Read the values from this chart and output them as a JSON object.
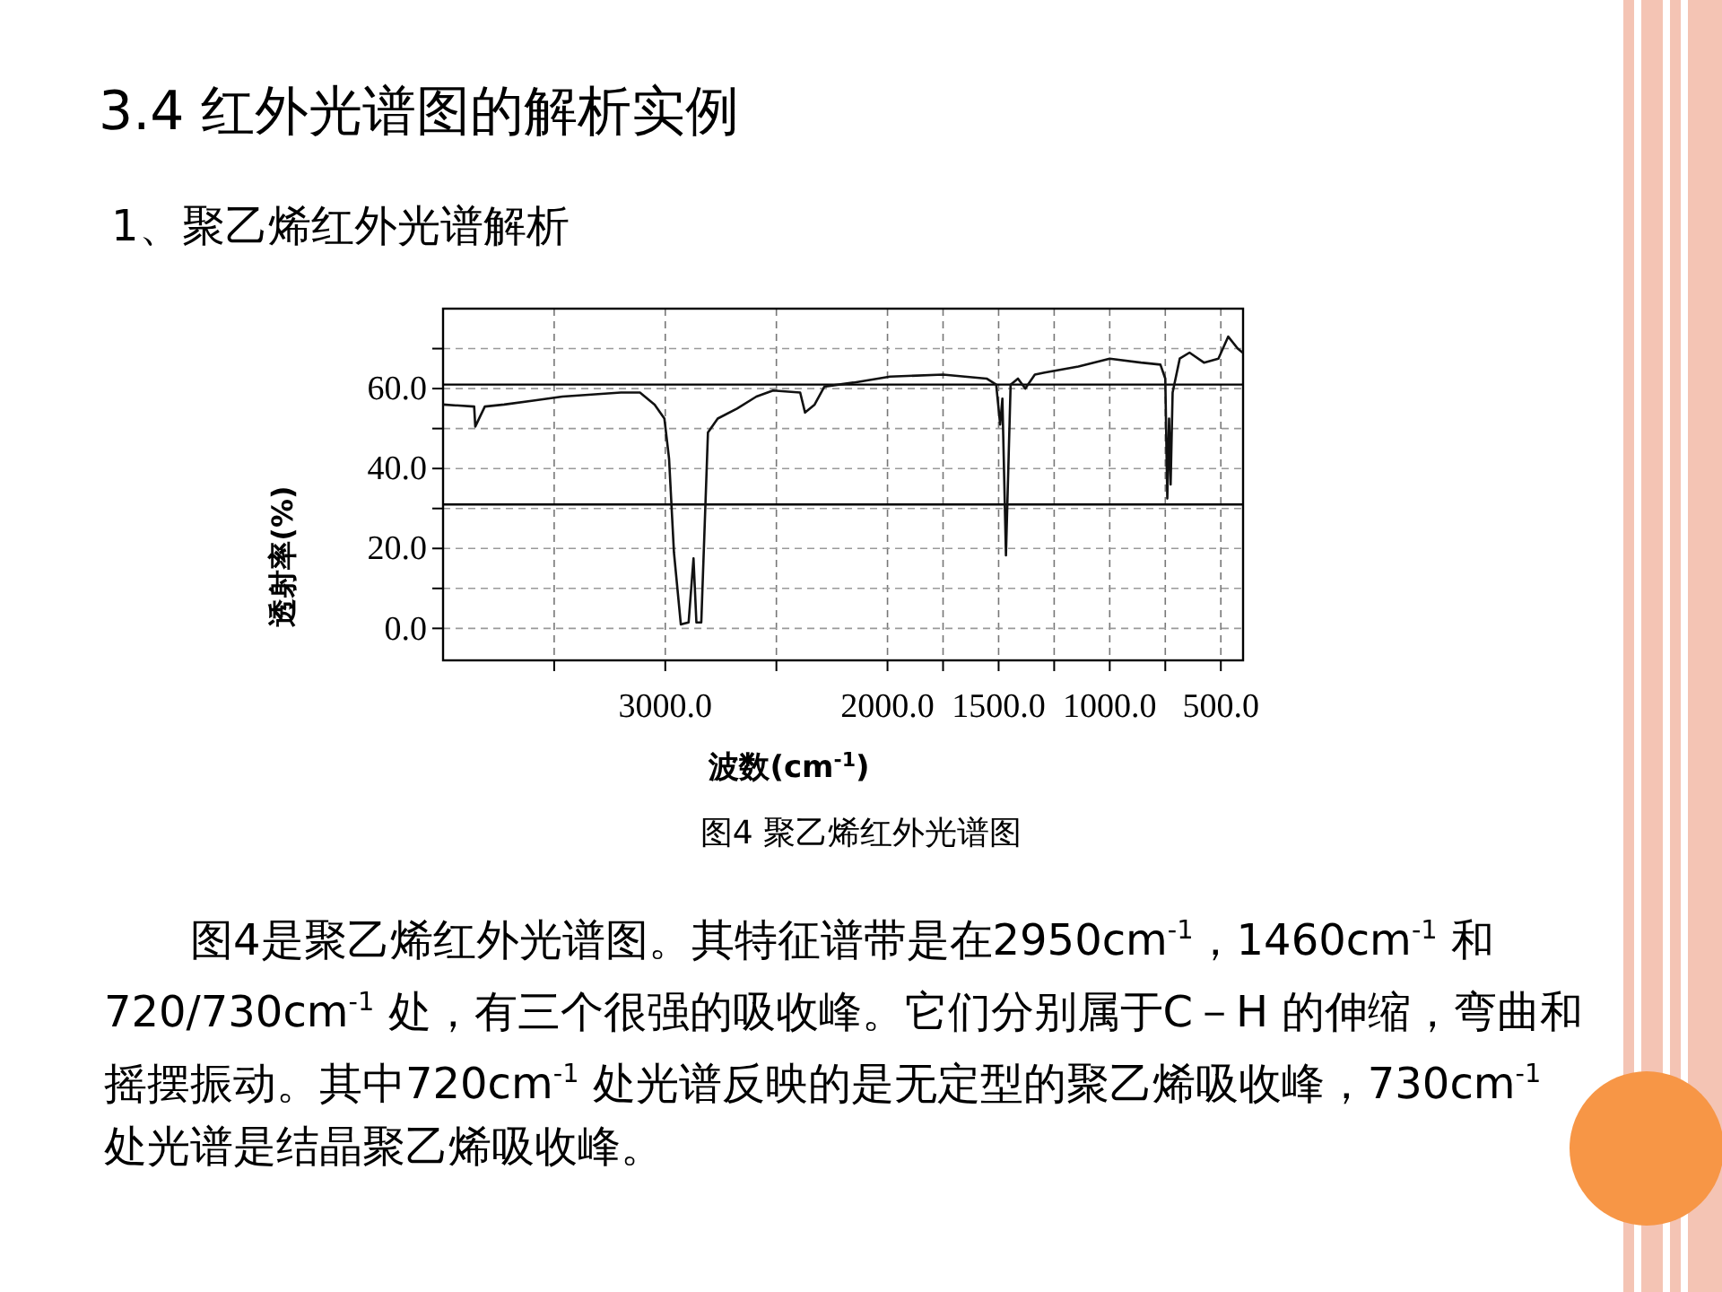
{
  "chart_data": {
    "type": "line",
    "title": "3.4 红外光谱图的解析实例",
    "subtitle": "1、聚乙烯红外光谱解析",
    "xlabel": "波数(cm$^{-1}$)",
    "ylabel": "透射率(%)",
    "annotations": [
      "图4 聚乙烯红外光谱图",
      "图4是聚乙烯红外光谱图。其特征谱带是在2950cm$^{-1}$，1460cm$^{-1}$ 和720/730cm$^{-1}$ 处，有三个很强的吸收峰。它们分别属于C－H 的伸缩，弯曲和摇摆振动。其中720cm$^{-1}$ 处光谱反映的是无定型的聚乙烯吸收峰，730cm$^{-1}$ 处光谱是结晶聚乙烯吸收峰。"
    ],
    "x": [
      4000,
      3860,
      3855,
      3812,
      3725,
      3594,
      3463,
      3200,
      3114,
      3048,
      3004,
      2983,
      2961,
      2930,
      2895,
      2873,
      2860,
      2838,
      2808,
      2764,
      2677,
      2590,
      2515,
      2393,
      2371,
      2328,
      2284,
      2153,
      1989,
      1750,
      1554,
      1511,
      1493,
      1483,
      1467,
      1446,
      1413,
      1380,
      1337,
      1293,
      1141,
      1000,
      859,
      772,
      750,
      741,
      733,
      726,
      717,
      685,
      641,
      576,
      511,
      467,
      424,
      402
    ],
    "series": [
      {
        "color": "#111111",
        "values": [
          56,
          55.5,
          50.5,
          55.5,
          56,
          57,
          58,
          59,
          59,
          56,
          52.5,
          42.5,
          19,
          1,
          1.5,
          17.5,
          1.5,
          1.5,
          49,
          52.5,
          55,
          58,
          59.5,
          59,
          54,
          56,
          60.5,
          61.5,
          63,
          63.5,
          62.5,
          61,
          51,
          57.5,
          18.3,
          61,
          62.5,
          60,
          63.5,
          64,
          65.5,
          67.5,
          66.5,
          66,
          62.5,
          32.5,
          52.5,
          36,
          59,
          67.5,
          69,
          66.5,
          67.5,
          73,
          70,
          69
        ]
      }
    ],
    "xlim": [
      4000,
      400
    ],
    "ylim": [
      -8,
      80
    ],
    "xticks": [
      {
        "value": 3500,
        "label": null
      },
      {
        "value": 3000,
        "label": "3000.0"
      },
      {
        "value": 2500,
        "label": null
      },
      {
        "value": 2000,
        "label": "2000.0"
      },
      {
        "value": 1750,
        "label": null
      },
      {
        "value": 1500,
        "label": "1500.0"
      },
      {
        "value": 1250,
        "label": null
      },
      {
        "value": 1000,
        "label": "1000.0"
      },
      {
        "value": 750,
        "label": null
      },
      {
        "value": 500,
        "label": "500.0"
      }
    ],
    "yticks": [
      {
        "value": 0,
        "label": "0.0"
      },
      {
        "value": 10,
        "label": null
      },
      {
        "value": 20,
        "label": "20.0"
      },
      {
        "value": 30,
        "label": null
      },
      {
        "value": 40,
        "label": "40.0"
      },
      {
        "value": 50,
        "label": null
      },
      {
        "value": 60,
        "label": "60.0"
      },
      {
        "value": 70,
        "label": null
      }
    ],
    "grid": true,
    "ref_lines": [
      {
        "axis": "y",
        "value": 61,
        "color": "#000000"
      },
      {
        "axis": "y",
        "value": 31,
        "color": "#000000"
      }
    ]
  }
}
